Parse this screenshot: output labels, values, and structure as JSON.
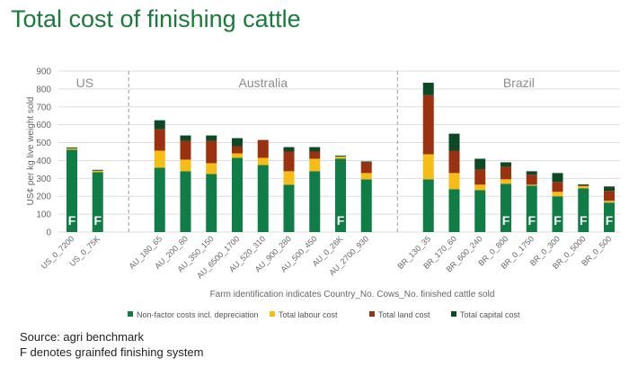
{
  "title": "Total cost of finishing cattle",
  "footer": {
    "source": "Source: agri benchmark",
    "note": "F denotes grainfed finishing system"
  },
  "colors": {
    "nonfactor": "#0f7d45",
    "labour": "#f6bd16",
    "land": "#9a3110",
    "capital": "#0c4a26",
    "grid": "#dddddd",
    "divider": "#999999",
    "region_text": "#8c8c8c",
    "axis_text": "#666666"
  },
  "chart_data": {
    "type": "bar",
    "stacked": true,
    "ylabel": "US¢ per kg  live weight sold",
    "xlabel": "Farm identification indicates Country_No. Cows_No. finished cattle sold",
    "ylim": [
      0,
      900
    ],
    "yticks": [
      0,
      100,
      200,
      300,
      400,
      500,
      600,
      700,
      800,
      900
    ],
    "grid": true,
    "legend_position": "bottom",
    "categories": [
      "US_0_7200",
      "US_0_75K",
      "AU_180_65",
      "AU_200_80",
      "AU_350_150",
      "AU_6500_1700",
      "AU_520_310",
      "AU_900_280",
      "AU_500_450",
      "AU_0_26K",
      "AU_2700_930",
      "BR_130_35",
      "BR_170_60",
      "BR_600_240",
      "BR_0_800",
      "BR_0_1750",
      "BR_0_300",
      "BR_0_5000",
      "BR_0_500"
    ],
    "regions": [
      {
        "name": "US",
        "start": 0,
        "end": 1
      },
      {
        "name": "Australia",
        "start": 2,
        "end": 10
      },
      {
        "name": "Brazil",
        "start": 11,
        "end": 18
      }
    ],
    "grainfed_marker": "F",
    "grainfed": [
      true,
      true,
      false,
      false,
      false,
      false,
      false,
      false,
      false,
      true,
      false,
      false,
      false,
      false,
      true,
      true,
      true,
      true,
      true
    ],
    "series": [
      {
        "name": "Non-factor costs incl. depreciation",
        "color": "#0f7d45",
        "values": [
          460,
          335,
          360,
          340,
          325,
          415,
          375,
          265,
          340,
          410,
          295,
          295,
          240,
          235,
          270,
          260,
          200,
          245,
          165
        ]
      },
      {
        "name": "Total labour cost",
        "color": "#f6bd16",
        "values": [
          8,
          8,
          95,
          65,
          60,
          25,
          40,
          75,
          70,
          12,
          35,
          140,
          90,
          30,
          25,
          5,
          25,
          12,
          10
        ]
      },
      {
        "name": "Total land cost",
        "color": "#9a3110",
        "values": [
          0,
          0,
          120,
          105,
          125,
          40,
          100,
          110,
          40,
          0,
          60,
          330,
          125,
          85,
          70,
          55,
          55,
          5,
          55
        ]
      },
      {
        "name": "Total capital cost",
        "color": "#0c4a26",
        "values": [
          5,
          5,
          50,
          30,
          30,
          45,
          0,
          25,
          25,
          5,
          5,
          70,
          95,
          60,
          25,
          20,
          50,
          5,
          25
        ]
      }
    ]
  }
}
